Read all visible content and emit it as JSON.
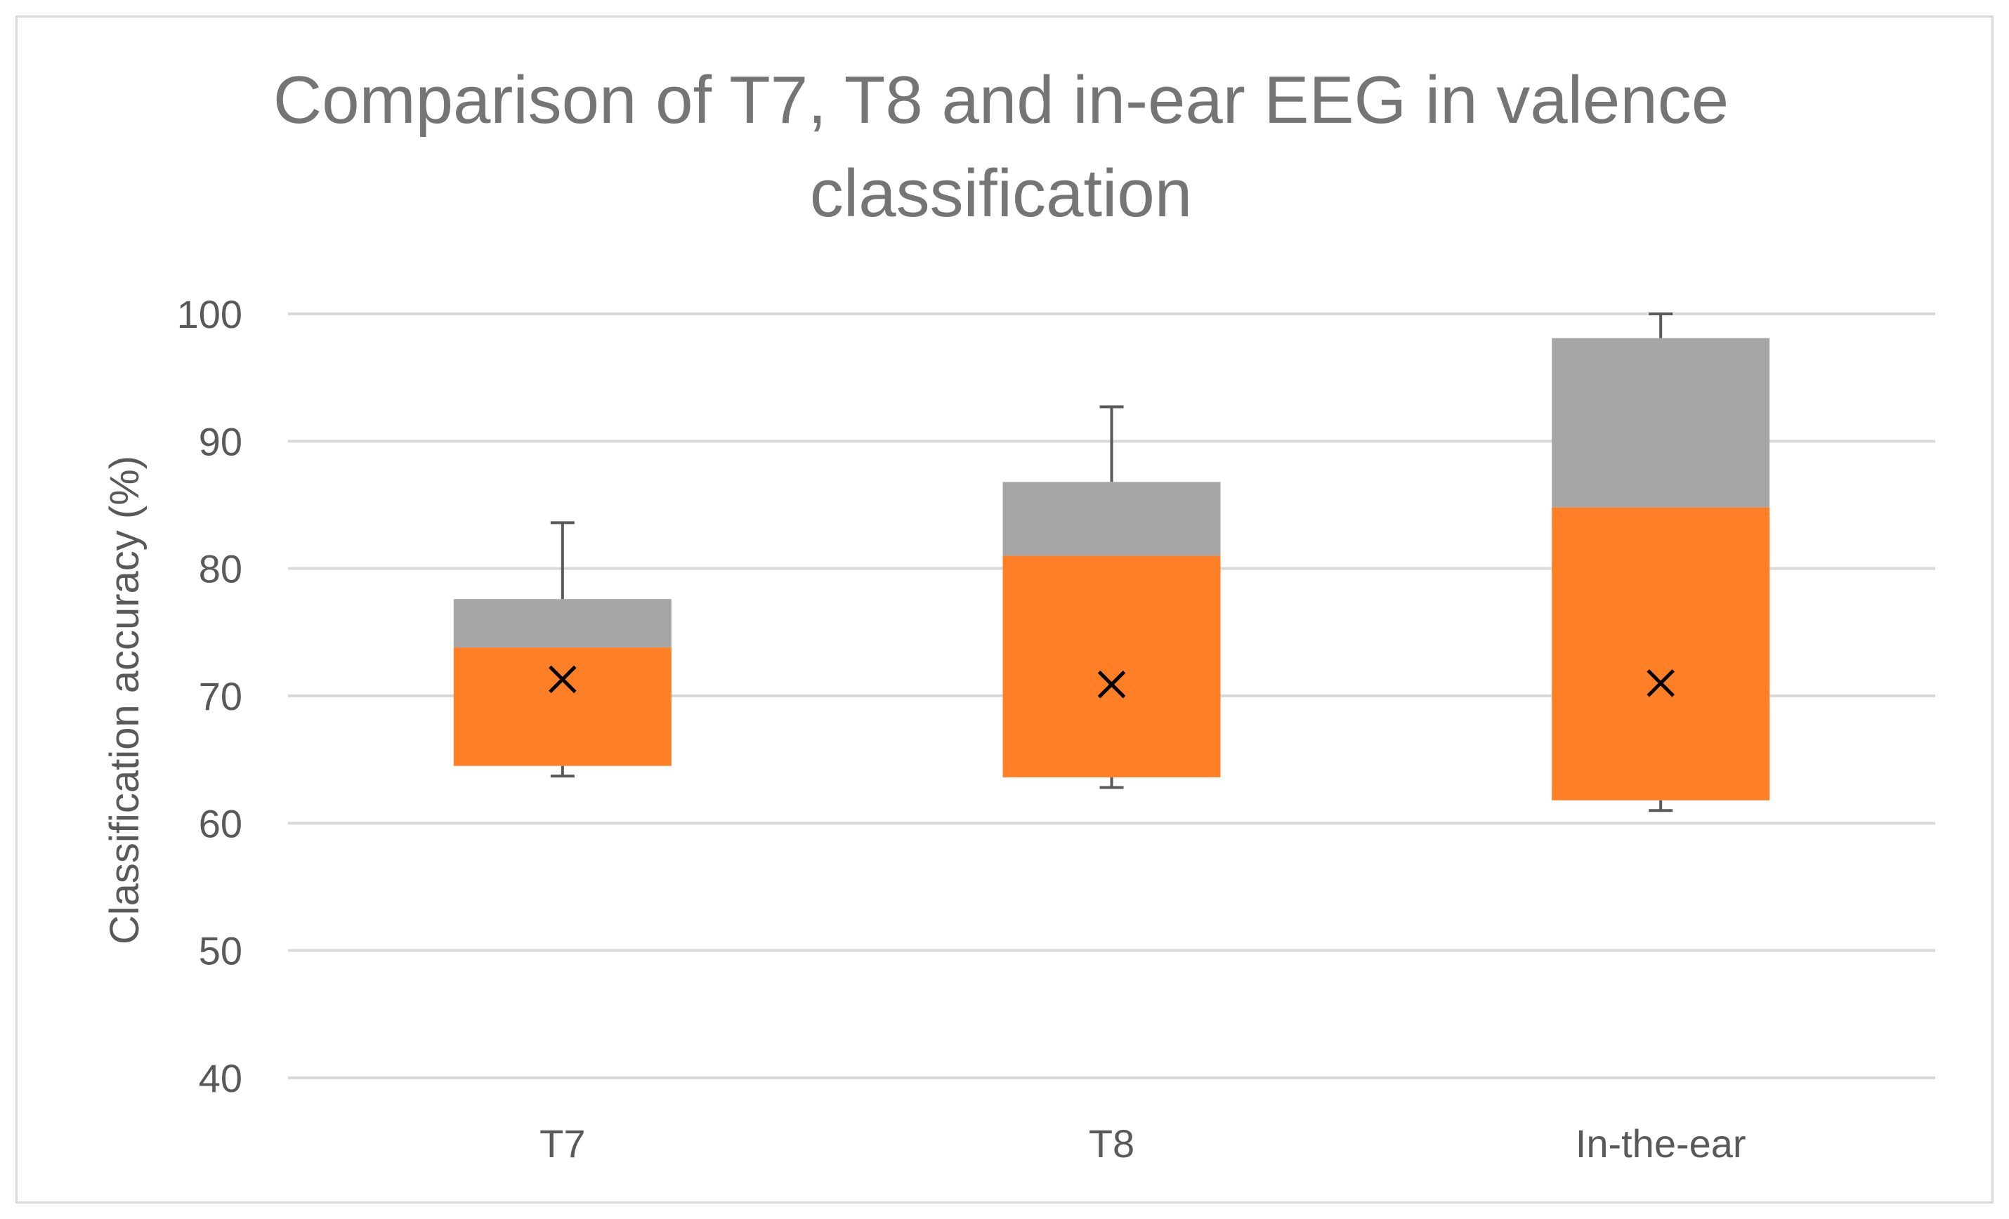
{
  "chart_data": {
    "type": "box",
    "title_lines": [
      "Comparison of T7, T8 and in-ear EEG in valence",
      "classification"
    ],
    "xlabel": "",
    "ylabel": "Classification accuracy (%)",
    "ylim": [
      40,
      100
    ],
    "yticks": [
      40,
      50,
      60,
      70,
      80,
      90,
      100
    ],
    "ytick_labels": [
      "40",
      "50",
      "60",
      "70",
      "80",
      "90",
      "100"
    ],
    "grid": true,
    "categories": [
      "T7",
      "T8",
      "In-the-ear"
    ],
    "boxes": [
      {
        "name": "T7",
        "min": 63.7,
        "q1": 64.5,
        "median": 73.8,
        "q3": 77.6,
        "max": 83.6,
        "mean": 71.3
      },
      {
        "name": "T8",
        "min": 62.8,
        "q1": 63.6,
        "median": 81.0,
        "q3": 86.8,
        "max": 92.7,
        "mean": 70.9
      },
      {
        "name": "In-the-ear",
        "min": 61.0,
        "q1": 61.8,
        "median": 84.8,
        "q3": 98.1,
        "max": 100.0,
        "mean": 71.0
      }
    ],
    "colors": {
      "lower_box": "#ff7f27",
      "upper_box": "#a6a6a6",
      "whisker": "#595959",
      "mean": "#000000",
      "grid": "#d9d9d9"
    }
  }
}
